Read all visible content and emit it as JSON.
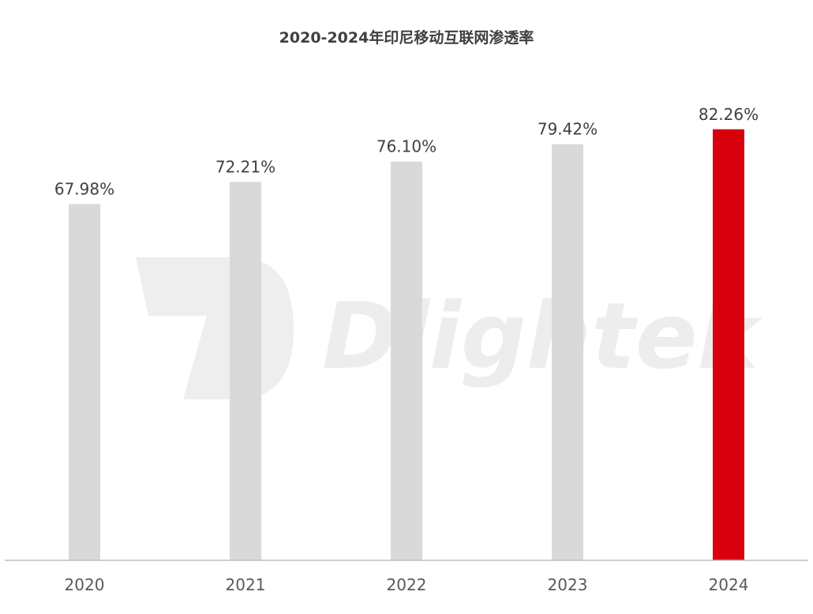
{
  "chart_data": {
    "type": "bar",
    "title": "2020-2024年印尼移动互联网渗透率",
    "xlabel": "",
    "ylabel": "",
    "categories": [
      "2020",
      "2021",
      "2022",
      "2023",
      "2024"
    ],
    "values": [
      67.98,
      72.21,
      76.1,
      79.42,
      82.26
    ],
    "value_labels": [
      "67.98%",
      "72.21%",
      "76.10%",
      "79.42%",
      "82.26%"
    ],
    "unit": "%",
    "ylim": [
      0,
      100
    ],
    "grid": false,
    "legend": "none",
    "highlight_index": 4
  },
  "colors": {
    "bar": "#d9d9d9",
    "highlight": "#d9000d",
    "axis": "#bfbfbf",
    "text": "#404040"
  },
  "watermark": {
    "text": "Dlightek",
    "logo": "d-logo-icon"
  }
}
